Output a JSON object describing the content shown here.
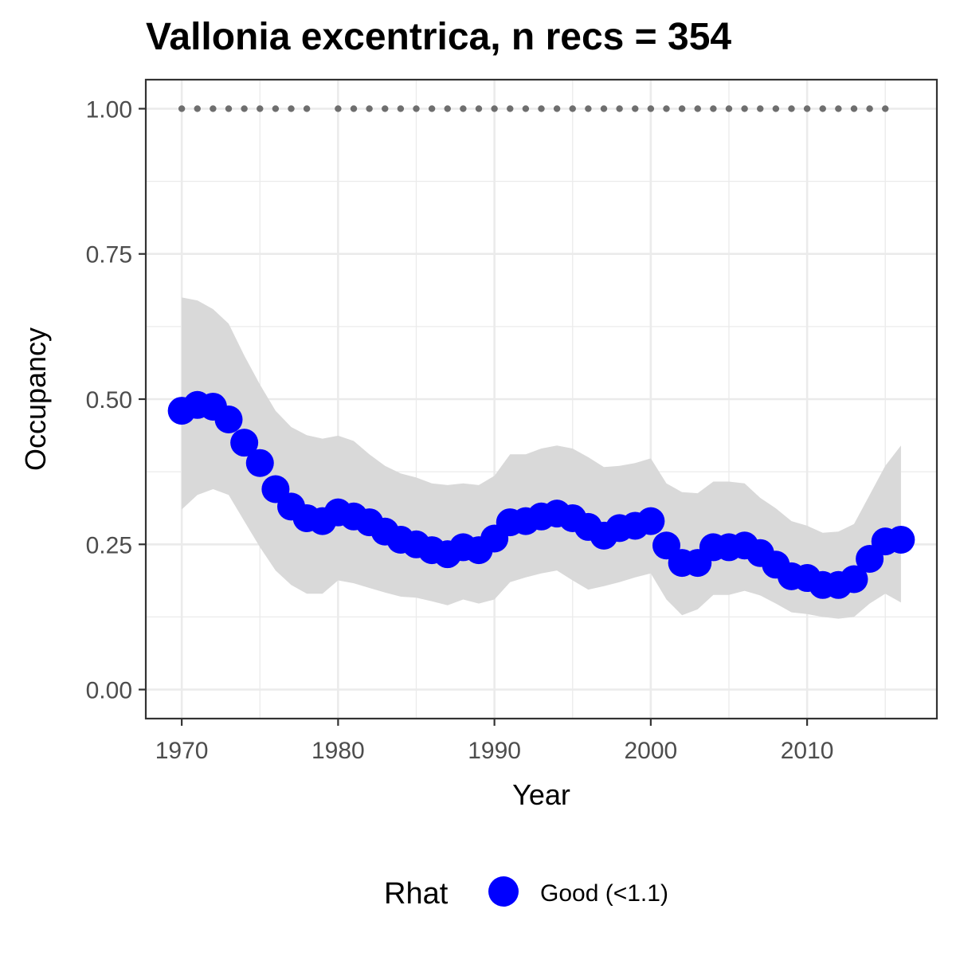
{
  "chart_data": {
    "type": "line",
    "title": "Vallonia excentrica, n recs = 354",
    "xlabel": "Year",
    "ylabel": "Occupancy",
    "xlim": [
      1967.7,
      2018.3
    ],
    "ylim": [
      -0.05,
      1.05
    ],
    "x_ticks": [
      1970,
      1980,
      1990,
      2000,
      2010
    ],
    "x_tick_labels": [
      "1970",
      "1980",
      "1990",
      "2000",
      "2010"
    ],
    "y_ticks": [
      0,
      0.25,
      0.5,
      0.75,
      1.0
    ],
    "y_tick_labels": [
      "0.00",
      "0.25",
      "0.50",
      "0.75",
      "1.00"
    ],
    "grid": true,
    "legend_position": "bottom",
    "legend_title": "Rhat",
    "series": [
      {
        "name": "Good (<1.1)",
        "color": "#0000ff",
        "x": [
          1970,
          1971,
          1972,
          1973,
          1974,
          1975,
          1976,
          1977,
          1978,
          1979,
          1980,
          1981,
          1982,
          1983,
          1984,
          1985,
          1986,
          1987,
          1988,
          1989,
          1990,
          1991,
          1992,
          1993,
          1994,
          1995,
          1996,
          1997,
          1998,
          1999,
          2000,
          2001,
          2002,
          2003,
          2004,
          2005,
          2006,
          2007,
          2008,
          2009,
          2010,
          2011,
          2012,
          2013,
          2014,
          2015,
          2016
        ],
        "values": [
          0.48,
          0.49,
          0.487,
          0.465,
          0.425,
          0.39,
          0.345,
          0.315,
          0.295,
          0.29,
          0.305,
          0.298,
          0.288,
          0.272,
          0.258,
          0.25,
          0.24,
          0.233,
          0.245,
          0.24,
          0.26,
          0.288,
          0.29,
          0.298,
          0.303,
          0.295,
          0.28,
          0.265,
          0.278,
          0.282,
          0.29,
          0.248,
          0.218,
          0.218,
          0.245,
          0.245,
          0.248,
          0.235,
          0.215,
          0.195,
          0.192,
          0.18,
          0.18,
          0.19,
          0.225,
          0.255,
          0.258
        ],
        "lower": [
          0.31,
          0.335,
          0.345,
          0.335,
          0.29,
          0.245,
          0.205,
          0.18,
          0.165,
          0.165,
          0.188,
          0.183,
          0.175,
          0.167,
          0.16,
          0.158,
          0.152,
          0.145,
          0.155,
          0.148,
          0.155,
          0.185,
          0.193,
          0.2,
          0.205,
          0.188,
          0.172,
          0.178,
          0.185,
          0.193,
          0.2,
          0.155,
          0.128,
          0.138,
          0.163,
          0.163,
          0.17,
          0.162,
          0.148,
          0.133,
          0.13,
          0.125,
          0.122,
          0.125,
          0.148,
          0.165,
          0.15
        ],
        "upper": [
          0.675,
          0.67,
          0.655,
          0.63,
          0.575,
          0.525,
          0.48,
          0.452,
          0.438,
          0.432,
          0.437,
          0.428,
          0.405,
          0.385,
          0.372,
          0.365,
          0.355,
          0.352,
          0.355,
          0.352,
          0.368,
          0.405,
          0.405,
          0.415,
          0.42,
          0.415,
          0.4,
          0.383,
          0.385,
          0.39,
          0.398,
          0.355,
          0.34,
          0.338,
          0.358,
          0.358,
          0.355,
          0.33,
          0.312,
          0.29,
          0.282,
          0.27,
          0.272,
          0.285,
          0.335,
          0.385,
          0.42
        ]
      }
    ],
    "detection_points": {
      "y": 1.0,
      "color": "#6e6e6e",
      "x": [
        1970,
        1971,
        1972,
        1973,
        1974,
        1975,
        1976,
        1977,
        1978,
        1980,
        1981,
        1982,
        1983,
        1984,
        1985,
        1986,
        1987,
        1988,
        1989,
        1990,
        1991,
        1992,
        1993,
        1994,
        1995,
        1996,
        1997,
        1998,
        1999,
        2000,
        2001,
        2002,
        2003,
        2004,
        2005,
        2006,
        2007,
        2008,
        2009,
        2010,
        2011,
        2012,
        2013,
        2014,
        2015
      ]
    },
    "ribbon_color": "#d9d9d9",
    "panel_border_color": "#333333",
    "grid_color": "#ebebeb"
  }
}
